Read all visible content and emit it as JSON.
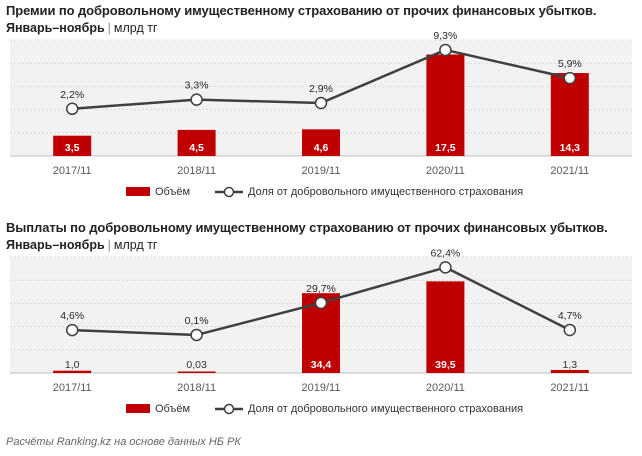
{
  "colors": {
    "bar": "#c00000",
    "line": "#404040",
    "grid": "#d9d9d9",
    "plot_bg": "#f2f2f2"
  },
  "source": "Расчёты Ranking.kz на основе данных НБ РК",
  "chart_data": [
    {
      "type": "bar+line",
      "title": "Премии по добровольному имущественному страхованию от прочих финансовых убытков.",
      "subtitle_bold": "Январь–ноябрь",
      "subtitle_unit": "млрд тг",
      "categories": [
        "2017/11",
        "2018/11",
        "2019/11",
        "2020/11",
        "2021/11"
      ],
      "series": [
        {
          "name": "Объём",
          "type": "bar",
          "values": [
            3.5,
            4.5,
            4.6,
            17.5,
            14.3
          ],
          "labels": [
            "3,5",
            "4,5",
            "4,6",
            "17,5",
            "14,3"
          ]
        },
        {
          "name": "Доля от добровольного имущественного страхования",
          "type": "line",
          "values": [
            2.2,
            3.3,
            2.9,
            9.3,
            5.9
          ],
          "labels": [
            "2,2%",
            "3,3%",
            "2,9%",
            "9,3%",
            "5,9%"
          ]
        }
      ],
      "bar_max": 20,
      "line_range": [
        -3.5,
        10.5
      ],
      "legend_position": "bottom"
    },
    {
      "type": "bar+line",
      "title": "Выплаты по добровольному имущественному страхованию от прочих финансовых убытков.",
      "subtitle_bold": "Январь–ноябрь",
      "subtitle_unit": "млрд тг",
      "categories": [
        "2017/11",
        "2018/11",
        "2019/11",
        "2020/11",
        "2021/11"
      ],
      "series": [
        {
          "name": "Объём",
          "type": "bar",
          "values": [
            1.0,
            0.03,
            34.4,
            39.5,
            1.3
          ],
          "labels": [
            "1,0",
            "0,03",
            "34,4",
            "39,5",
            "1,3"
          ]
        },
        {
          "name": "Доля от добровольного имущественного страхования",
          "type": "line",
          "values": [
            4.6,
            0.1,
            29.7,
            62.4,
            4.7
          ],
          "labels": [
            "4,6%",
            "0,1%",
            "29,7%",
            "62,4%",
            "4,7%"
          ]
        }
      ],
      "bar_max": 50,
      "line_range": [
        -35,
        72
      ],
      "legend_position": "bottom"
    }
  ]
}
